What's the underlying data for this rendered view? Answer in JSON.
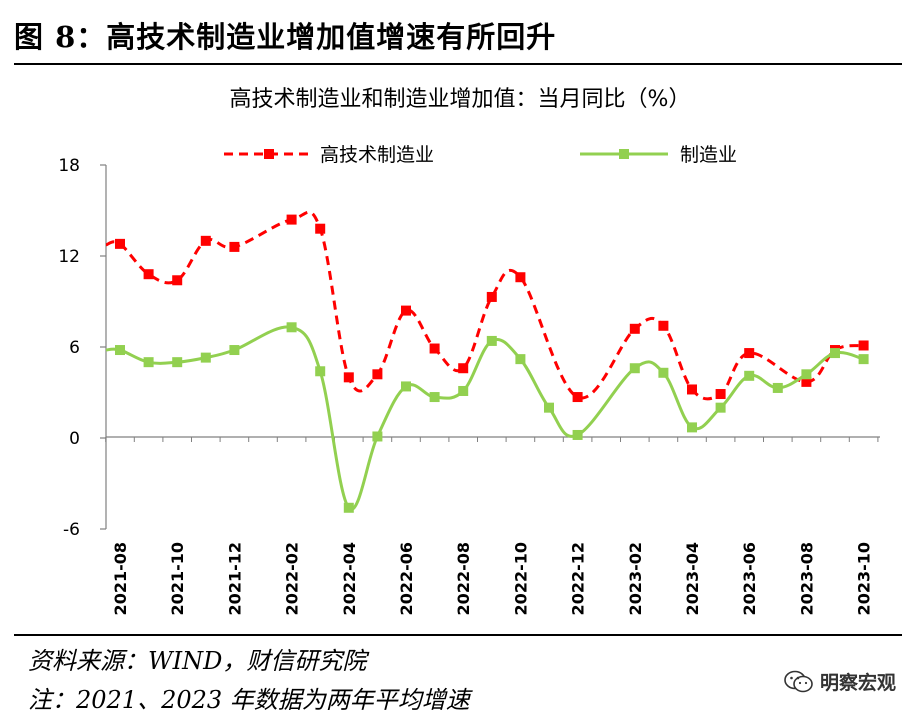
{
  "figure": {
    "title": "图 8：高技术制造业增加值增速有所回升",
    "source": "资料来源：WIND，财信研究院",
    "note": "注：2021、2023 年数据为两年平均增速",
    "watermark": "明察宏观",
    "watermark_icon": "wechat-icon"
  },
  "chart_data": {
    "type": "line",
    "title": "高技术制造业和制造业增加值：当月同比（%）",
    "xlabel": "",
    "ylabel": "",
    "ylim": [
      -6,
      18
    ],
    "yticks": [
      "18",
      "12",
      "6",
      "0",
      "-6"
    ],
    "x": [
      "2021-08",
      "2021-09",
      "2021-10",
      "2021-11",
      "2021-12",
      "2022-01",
      "2022-02",
      "2022-03",
      "2022-04",
      "2022-05",
      "2022-06",
      "2022-07",
      "2022-08",
      "2022-09",
      "2022-10",
      "2022-11",
      "2022-12",
      "2023-01",
      "2023-02",
      "2023-03",
      "2023-04",
      "2023-05",
      "2023-06",
      "2023-07",
      "2023-08",
      "2023-09",
      "2023-10"
    ],
    "xticklabels": [
      "2021-08",
      "2021-10",
      "2021-12",
      "2022-02",
      "2022-04",
      "2022-06",
      "2022-08",
      "2022-10",
      "2022-12",
      "2023-02",
      "2023-04",
      "2023-06",
      "2023-08",
      "2023-10"
    ],
    "legend_position": "top",
    "grid": false,
    "series": [
      {
        "name": "高技术制造业",
        "color": "#ff0000",
        "style": "dashed",
        "marker": "square",
        "values": [
          12.8,
          10.8,
          10.4,
          13.0,
          12.6,
          null,
          14.4,
          13.8,
          4.0,
          4.2,
          8.4,
          5.9,
          4.6,
          9.3,
          10.6,
          null,
          2.7,
          null,
          7.2,
          7.4,
          3.2,
          2.9,
          5.6,
          null,
          3.7,
          5.8,
          6.1
        ]
      },
      {
        "name": "制造业",
        "color": "#92d050",
        "style": "solid",
        "marker": "square",
        "values": [
          5.8,
          5.0,
          5.0,
          5.3,
          5.8,
          null,
          7.3,
          4.4,
          -4.6,
          0.1,
          3.4,
          2.7,
          3.1,
          6.4,
          5.2,
          2.0,
          0.2,
          null,
          4.6,
          4.3,
          0.7,
          2.0,
          4.1,
          3.3,
          4.2,
          5.6,
          5.2
        ]
      }
    ]
  }
}
